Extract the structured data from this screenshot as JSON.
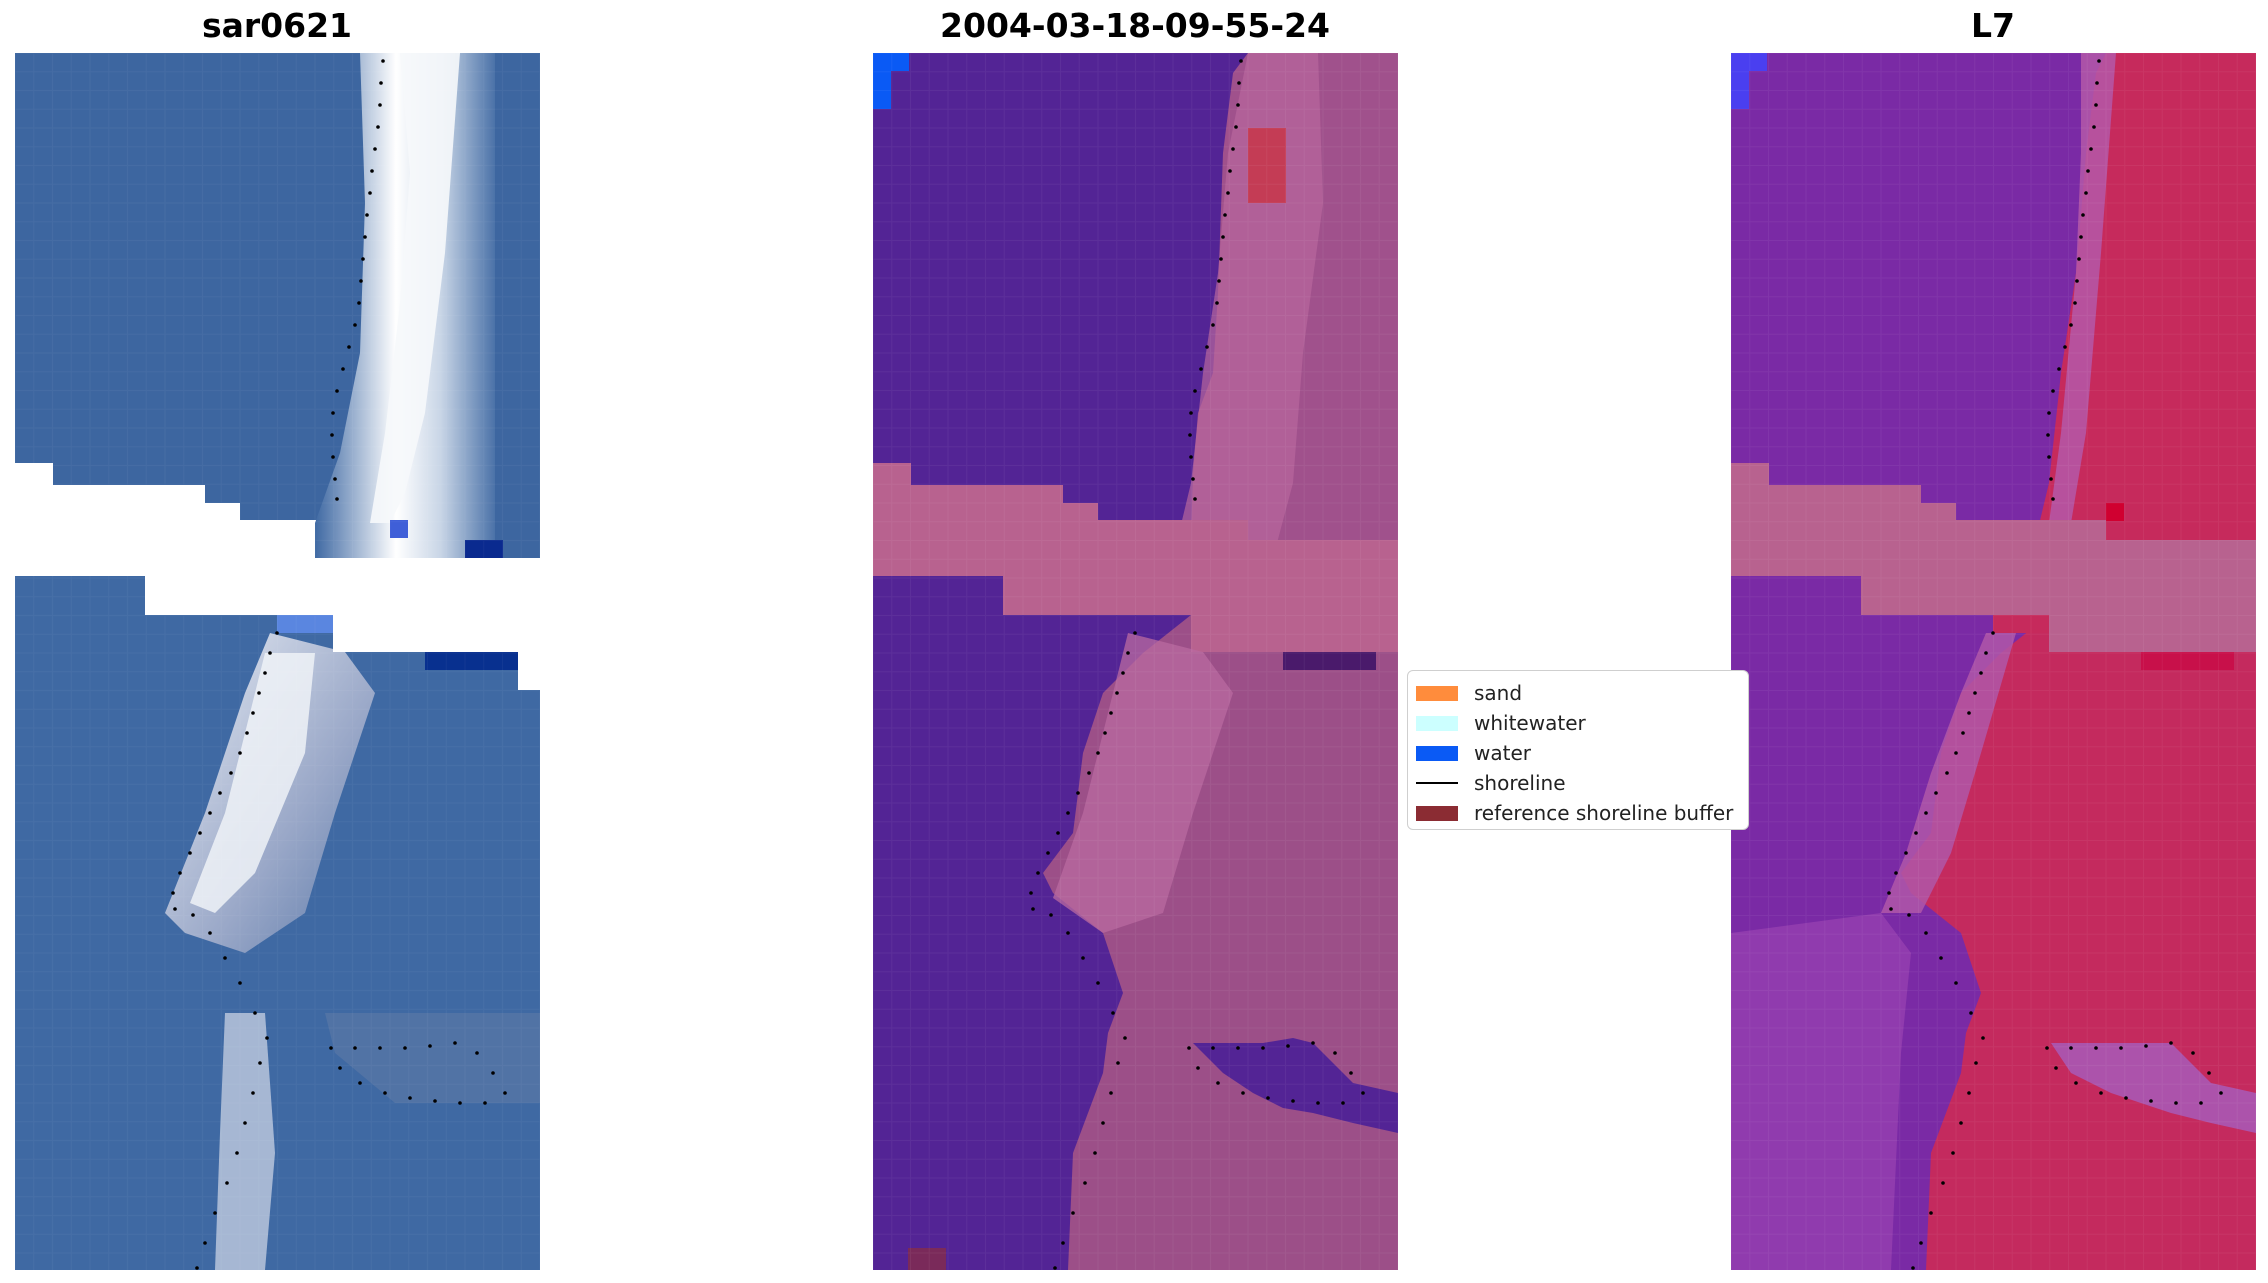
{
  "panels": {
    "left_title": "sar0621",
    "middle_title": "2004-03-18-09-55-24",
    "right_title": "L7"
  },
  "legend": {
    "items": [
      {
        "label": "sand",
        "color": "#ff8c3c",
        "kind": "patch"
      },
      {
        "label": "whitewater",
        "color": "#ccffff",
        "kind": "patch"
      },
      {
        "label": "water",
        "color": "#0a5af5",
        "kind": "patch"
      },
      {
        "label": "shoreline",
        "color": "#000000",
        "kind": "line"
      },
      {
        "label": "reference shoreline buffer",
        "color": "#8b2c33",
        "kind": "patch"
      }
    ]
  },
  "colors": {
    "rgb_water": "#3f69a3",
    "rgb_whitewater": "#f2f4f6",
    "class_water": "#532495",
    "class_land": "#a45590",
    "class_buffer": "#b8628f",
    "index_water": "#7b28a8",
    "index_land": "#c6285b",
    "shoreline_dots": "#000000"
  }
}
